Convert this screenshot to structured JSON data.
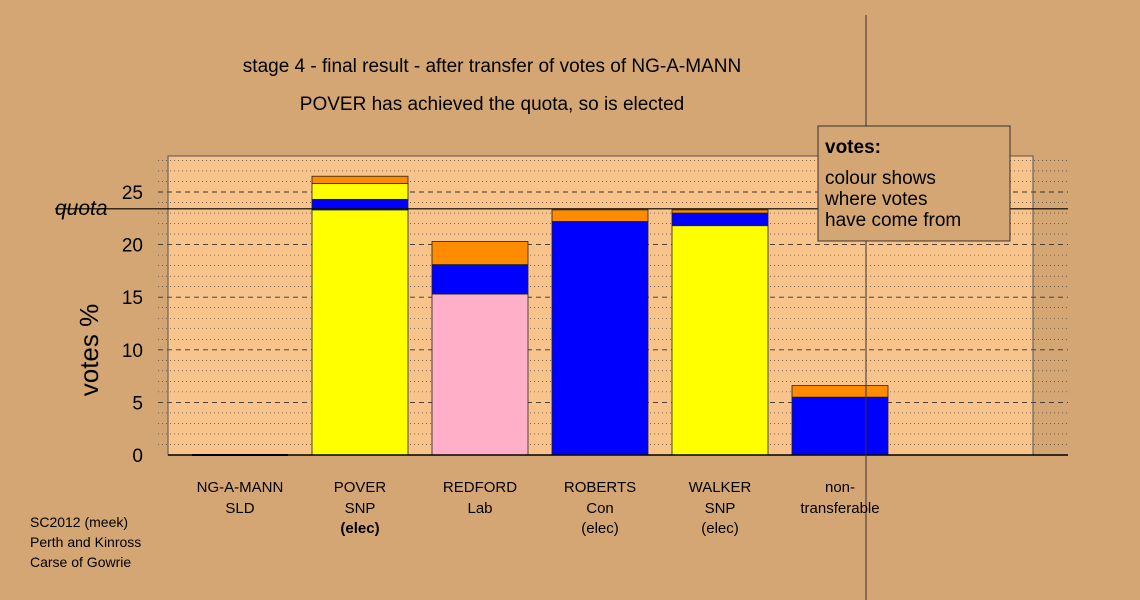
{
  "chart_data": {
    "type": "bar",
    "stacked": true,
    "title": "stage 4 - final result - after transfer of votes of NG-A-MANN",
    "subtitle": "POVER has achieved the quota, so is elected",
    "ylabel": "votes %",
    "ylim": [
      0,
      28
    ],
    "yticks": [
      0,
      5,
      10,
      15,
      20,
      25
    ],
    "quota": 23.4,
    "quota_label": "quota",
    "grid": true,
    "colors": {
      "background": "#d4a674",
      "plot_background": "#f8c48c",
      "yellow": "#ffff00",
      "blue": "#0000ff",
      "orange": "#ff8c00",
      "pink": "#ffb0c8"
    },
    "categories": [
      {
        "name": "NG-A-MANN",
        "party": "SLD",
        "status": ""
      },
      {
        "name": "POVER",
        "party": "SNP",
        "status": "(elec)"
      },
      {
        "name": "REDFORD",
        "party": "Lab",
        "status": ""
      },
      {
        "name": "ROBERTS",
        "party": "Con",
        "status": "(elec)"
      },
      {
        "name": "WALKER",
        "party": "SNP",
        "status": "(elec)"
      },
      {
        "name": "non-",
        "party": "transferable",
        "status": ""
      }
    ],
    "bars": [
      {
        "segments": [
          {
            "color": "blue",
            "value": 0.0
          }
        ]
      },
      {
        "segments": [
          {
            "color": "yellow",
            "value": 23.3
          },
          {
            "color": "blue",
            "value": 1.0
          },
          {
            "color": "yellow",
            "value": 1.5
          },
          {
            "color": "orange",
            "value": 0.7
          }
        ]
      },
      {
        "segments": [
          {
            "color": "pink",
            "value": 15.3
          },
          {
            "color": "blue",
            "value": 2.8
          },
          {
            "color": "orange",
            "value": 2.2
          }
        ]
      },
      {
        "segments": [
          {
            "color": "blue",
            "value": 22.2
          },
          {
            "color": "orange",
            "value": 1.1
          }
        ]
      },
      {
        "segments": [
          {
            "color": "yellow",
            "value": 21.8
          },
          {
            "color": "blue",
            "value": 1.2
          },
          {
            "color": "orange",
            "value": 0.3
          }
        ]
      },
      {
        "segments": [
          {
            "color": "blue",
            "value": 5.5
          },
          {
            "color": "orange",
            "value": 1.1
          }
        ]
      }
    ],
    "legend": {
      "title": "votes:",
      "lines": [
        "colour shows",
        "where votes",
        "have come from"
      ],
      "position": "top-right"
    }
  },
  "footer": {
    "lines": [
      "SC2012 (meek)",
      "Perth and Kinross",
      "Carse of Gowrie"
    ]
  }
}
